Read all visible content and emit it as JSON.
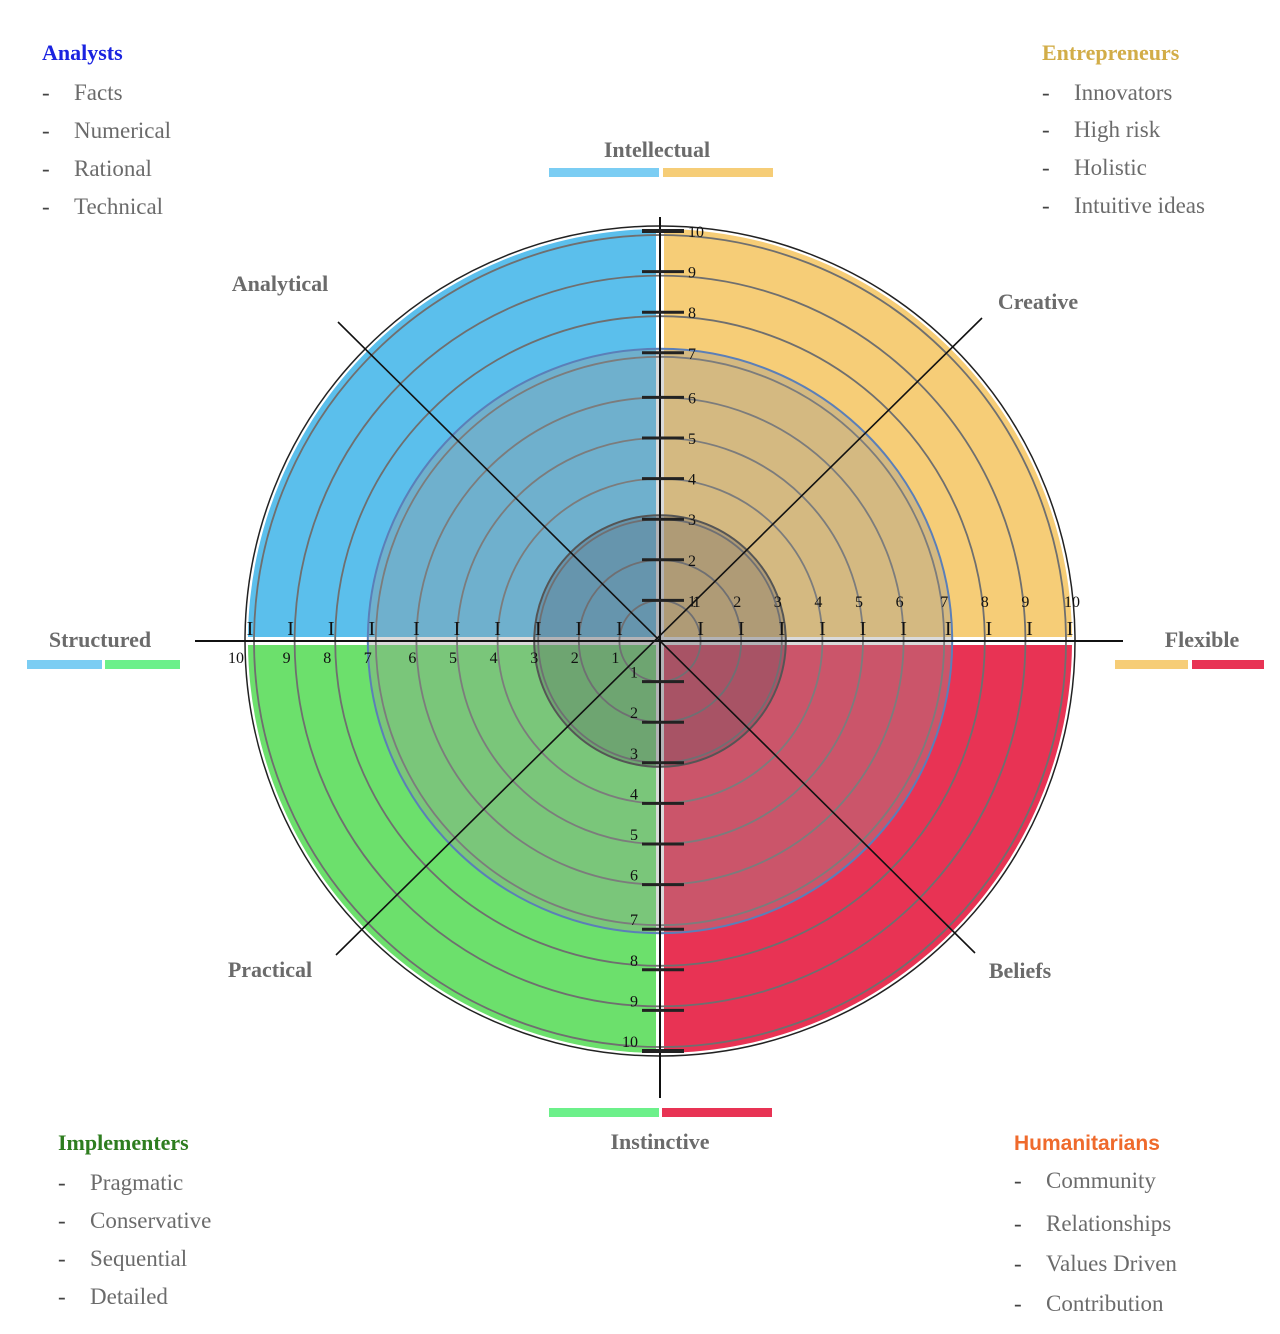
{
  "colors": {
    "analysts": "#5bbfec",
    "entrepreneurs": "#f6cd77",
    "implementers": "#6ce06c",
    "humanitarians": "#e83354",
    "analysts_title": "#1a23e0",
    "entrepreneurs_title": "#d2ad48",
    "implementers_title": "#2e7d1f",
    "humanitarians_title": "#ef6a2c",
    "label_gray": "#6b6b6b"
  },
  "quadrants": {
    "analysts": {
      "title": "Analysts",
      "items": [
        "Facts",
        "Numerical",
        "Rational",
        "Technical"
      ]
    },
    "entrepreneurs": {
      "title": "Entrepreneurs",
      "items": [
        "Innovators",
        "High risk",
        "Holistic",
        "Intuitive ideas"
      ]
    },
    "implementers": {
      "title": "Implementers",
      "items": [
        "Pragmatic",
        "Conservative",
        "Sequential",
        "Detailed"
      ]
    },
    "humanitarians": {
      "title": "Humanitarians",
      "items": [
        "Community",
        "Relationships",
        "Values Driven",
        "Contribution"
      ]
    }
  },
  "axes": {
    "top": "Intellectual",
    "bottom": "Instinctive",
    "left": "Structured",
    "right": "Flexible",
    "top_left": "Analytical",
    "top_right": "Creative",
    "bottom_left": "Practical",
    "bottom_right": "Beliefs"
  },
  "scale": {
    "labels": [
      "1",
      "2",
      "3",
      "4",
      "5",
      "6",
      "7",
      "8",
      "9",
      "10"
    ],
    "marker": "I",
    "overlay_inner_level": 3,
    "overlay_outer_level": 7
  }
}
